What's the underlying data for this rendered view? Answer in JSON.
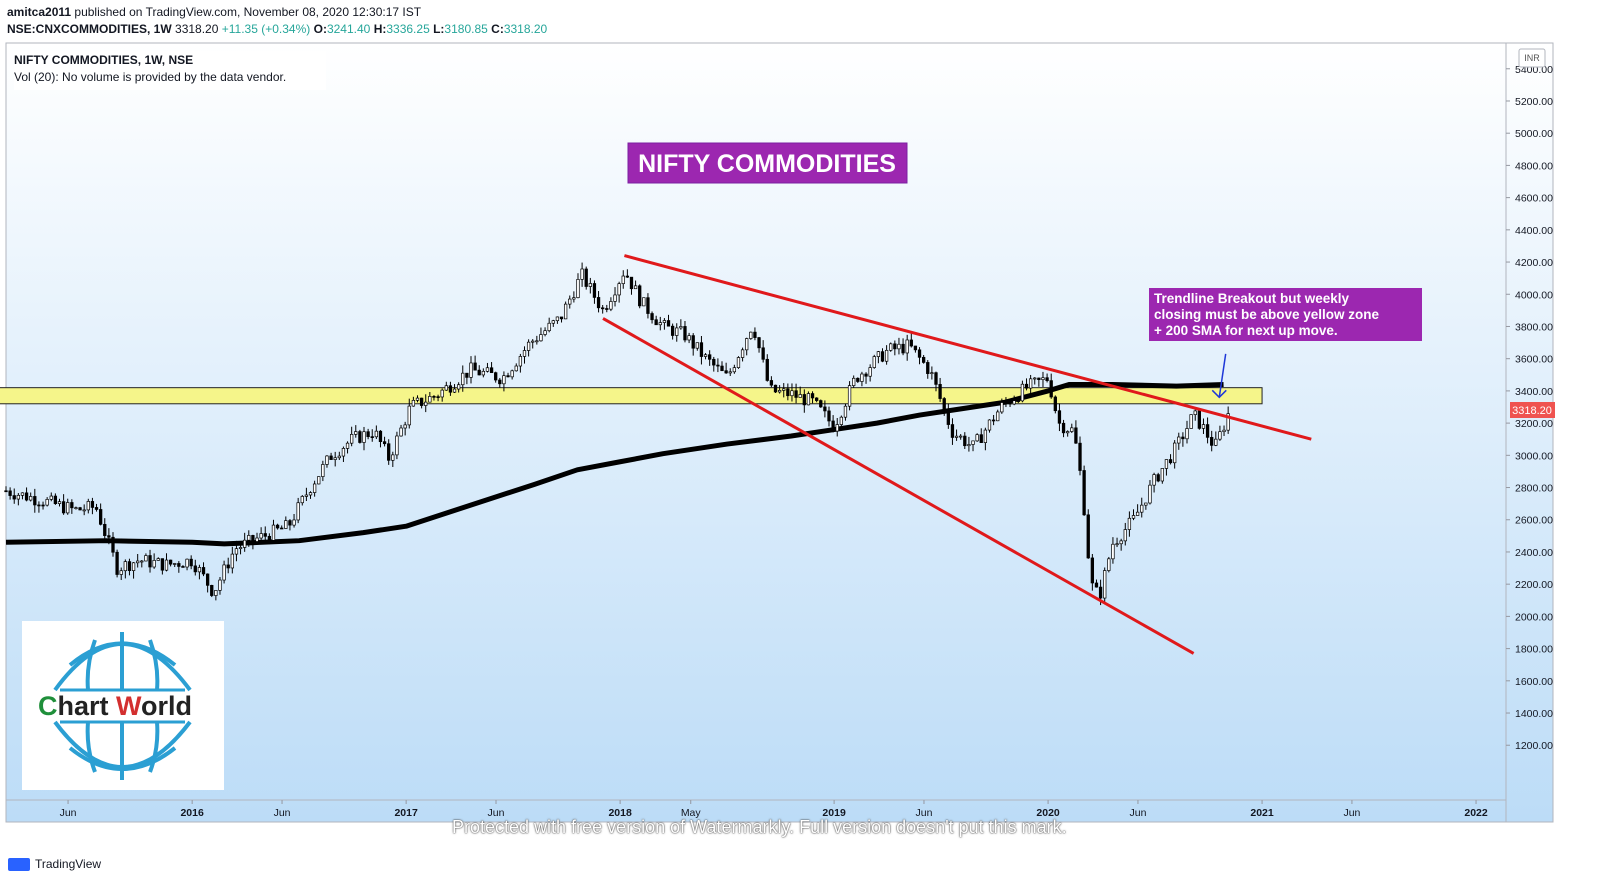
{
  "header": {
    "publisher": "amitca2011",
    "published_text": "published on TradingView.com, November 08, 2020 12:30:17 IST",
    "symbol": "NSE:CNXCOMMODITIES, 1W",
    "last": "3318.20",
    "change": "+11.35 (+0.34%)",
    "open_label": "O:",
    "open": "3241.40",
    "high_label": "H:",
    "high": "3336.25",
    "low_label": "L:",
    "low": "3180.85",
    "close_label": "C:",
    "close": "3318.20"
  },
  "legend": {
    "title": "NIFTY COMMODITIES, 1W, NSE",
    "volume": "Vol (20): No volume is provided by the data vendor."
  },
  "colors": {
    "background_top": "#ffffff",
    "background_bottom": "#bcdcf7",
    "candle": "#000000",
    "sma": "#000000",
    "trendline": "#e0191b",
    "zone": "#f5f58a",
    "title_box": "#9c27b0",
    "price_badge": "#ef5350",
    "arrow": "#1e37d8"
  },
  "annotation_title": "NIFTY COMMODITIES",
  "annotation_note": [
    "Trendline Breakout but weekly",
    "closing must be above yellow zone",
    "+ 200 SMA for next up move."
  ],
  "price_badge": "3318.20",
  "currency": "INR",
  "logo": {
    "text_c": "C",
    "text_hart": "hart ",
    "text_w": "W",
    "text_orld": "orld"
  },
  "footer": {
    "brand": "TradingView",
    "watermark": "Protected with free version of Watermarkly. Full version doesn't put this mark."
  },
  "chart_data": {
    "type": "candlestick",
    "title": "NIFTY COMMODITIES, 1W, NSE",
    "timeframe": "1W",
    "y_axis": {
      "ticks": [
        1200,
        1400,
        1600,
        1800,
        2000,
        2200,
        2400,
        2600,
        2800,
        3000,
        3200,
        3400,
        3600,
        3800,
        4000,
        4200,
        4400,
        4600,
        4800,
        5000,
        5200,
        5400
      ],
      "tick_labels": [
        "1200.00",
        "1400.00",
        "1600.00",
        "1800.00",
        "2000.00",
        "2200.00",
        "2400.00",
        "2600.00",
        "2800.00",
        "3000.00",
        "3200.00",
        "3400.00",
        "3600.00",
        "3800.00",
        "4000.00",
        "4200.00",
        "4400.00",
        "4600.00",
        "4800.00",
        "5000.00",
        "5200.00",
        "5400.00"
      ],
      "range": [
        860,
        5560
      ]
    },
    "x_axis": {
      "range": [
        2015.13,
        2022.14
      ],
      "ticks": [
        {
          "t": 2015.42,
          "label": "Jun",
          "bold": false
        },
        {
          "t": 2016.0,
          "label": "2016",
          "bold": true
        },
        {
          "t": 2016.42,
          "label": "Jun",
          "bold": false
        },
        {
          "t": 2017.0,
          "label": "2017",
          "bold": true
        },
        {
          "t": 2017.42,
          "label": "Jun",
          "bold": false
        },
        {
          "t": 2018.0,
          "label": "2018",
          "bold": true
        },
        {
          "t": 2018.33,
          "label": "May",
          "bold": false
        },
        {
          "t": 2019.0,
          "label": "2019",
          "bold": true
        },
        {
          "t": 2019.42,
          "label": "Jun",
          "bold": false
        },
        {
          "t": 2020.0,
          "label": "2020",
          "bold": true
        },
        {
          "t": 2020.42,
          "label": "Jun",
          "bold": false
        },
        {
          "t": 2021.0,
          "label": "2021",
          "bold": true
        },
        {
          "t": 2021.42,
          "label": "Jun",
          "bold": false
        },
        {
          "t": 2022.0,
          "label": "2022",
          "bold": true
        }
      ]
    },
    "price_path": [
      [
        2015.13,
        2780
      ],
      [
        2015.3,
        2720
      ],
      [
        2015.45,
        2660
      ],
      [
        2015.55,
        2680
      ],
      [
        2015.65,
        2300
      ],
      [
        2015.75,
        2350
      ],
      [
        2015.88,
        2320
      ],
      [
        2016.0,
        2350
      ],
      [
        2016.1,
        2150
      ],
      [
        2016.2,
        2420
      ],
      [
        2016.3,
        2480
      ],
      [
        2016.45,
        2560
      ],
      [
        2016.55,
        2800
      ],
      [
        2016.65,
        3000
      ],
      [
        2016.75,
        3100
      ],
      [
        2016.85,
        3150
      ],
      [
        2016.92,
        2980
      ],
      [
        2017.02,
        3300
      ],
      [
        2017.15,
        3380
      ],
      [
        2017.3,
        3530
      ],
      [
        2017.45,
        3480
      ],
      [
        2017.58,
        3700
      ],
      [
        2017.72,
        3850
      ],
      [
        2017.82,
        4120
      ],
      [
        2017.92,
        3900
      ],
      [
        2018.02,
        4150
      ],
      [
        2018.1,
        3950
      ],
      [
        2018.2,
        3800
      ],
      [
        2018.3,
        3750
      ],
      [
        2018.4,
        3600
      ],
      [
        2018.5,
        3480
      ],
      [
        2018.62,
        3820
      ],
      [
        2018.7,
        3400
      ],
      [
        2018.8,
        3380
      ],
      [
        2018.9,
        3330
      ],
      [
        2019.0,
        3180
      ],
      [
        2019.1,
        3480
      ],
      [
        2019.25,
        3650
      ],
      [
        2019.35,
        3680
      ],
      [
        2019.45,
        3520
      ],
      [
        2019.55,
        3150
      ],
      [
        2019.65,
        3050
      ],
      [
        2019.78,
        3300
      ],
      [
        2019.9,
        3420
      ],
      [
        2020.0,
        3480
      ],
      [
        2020.05,
        3200
      ],
      [
        2020.12,
        3150
      ],
      [
        2020.16,
        2800
      ],
      [
        2020.2,
        2200
      ],
      [
        2020.24,
        2120
      ],
      [
        2020.3,
        2450
      ],
      [
        2020.4,
        2600
      ],
      [
        2020.5,
        2850
      ],
      [
        2020.6,
        3050
      ],
      [
        2020.68,
        3250
      ],
      [
        2020.72,
        3180
      ],
      [
        2020.78,
        3050
      ],
      [
        2020.82,
        3180
      ],
      [
        2020.86,
        3318
      ]
    ],
    "sma_200": {
      "name": "200 SMA",
      "points": [
        [
          2015.13,
          2460
        ],
        [
          2015.6,
          2470
        ],
        [
          2016.0,
          2460
        ],
        [
          2016.15,
          2450
        ],
        [
          2016.5,
          2470
        ],
        [
          2016.8,
          2520
        ],
        [
          2017.0,
          2560
        ],
        [
          2017.3,
          2690
        ],
        [
          2017.6,
          2820
        ],
        [
          2017.8,
          2910
        ],
        [
          2018.0,
          2960
        ],
        [
          2018.2,
          3010
        ],
        [
          2018.5,
          3070
        ],
        [
          2018.8,
          3120
        ],
        [
          2019.0,
          3160
        ],
        [
          2019.2,
          3200
        ],
        [
          2019.4,
          3250
        ],
        [
          2019.6,
          3290
        ],
        [
          2019.8,
          3330
        ],
        [
          2020.0,
          3400
        ],
        [
          2020.1,
          3440
        ],
        [
          2020.3,
          3440
        ],
        [
          2020.6,
          3430
        ],
        [
          2020.82,
          3440
        ]
      ]
    },
    "trendlines": [
      {
        "name": "upper",
        "from": [
          2018.02,
          4240
        ],
        "to": [
          2021.23,
          3100
        ]
      },
      {
        "name": "lower",
        "from": [
          2017.92,
          3850
        ],
        "to": [
          2020.68,
          1770
        ]
      }
    ],
    "zone": {
      "x": [
        2014.9,
        2021.0
      ],
      "y": [
        3320,
        3420
      ]
    },
    "annotation_arrow": {
      "from": [
        2020.83,
        3630
      ],
      "to": [
        2020.8,
        3360
      ]
    }
  }
}
